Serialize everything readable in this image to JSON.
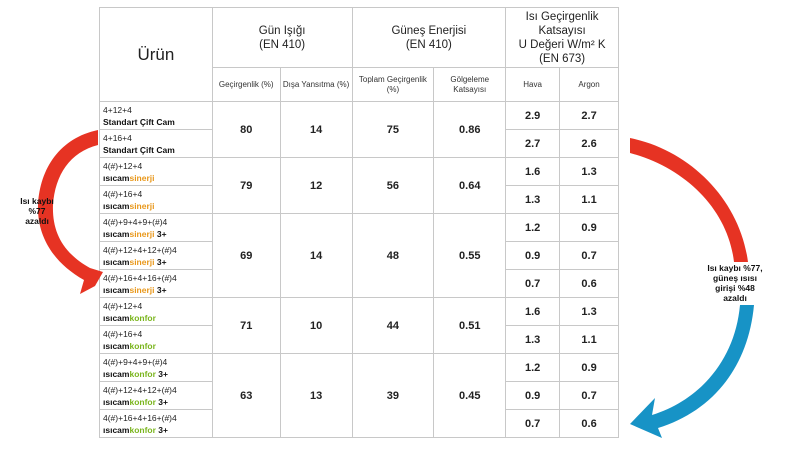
{
  "header": {
    "product": "Ürün",
    "daylight": {
      "title": "Gün Işığı",
      "standard": "(EN 410)",
      "col1": "Geçirgenlik (%)",
      "col2": "Dışa Yansıtma (%)"
    },
    "solar": {
      "title": "Güneş Enerjisi",
      "standard": "(EN 410)",
      "col1": "Toplam Geçirgenlik (%)",
      "col2": "Gölgeleme Katsayısı"
    },
    "heat": {
      "line1": "Isı Geçirgenlik",
      "line2": "Katsayısı",
      "line3": "U Değeri W/m² K",
      "line4": "(EN 673)",
      "col1": "Hava",
      "col2": "Argon"
    }
  },
  "groups": [
    {
      "light_trans": "80",
      "light_refl": "14",
      "solar_total": "75",
      "shading": "0.86",
      "rows": [
        {
          "config": "4+12+4",
          "brand": "Standart Çift Cam",
          "line": "",
          "suffix": "",
          "hava": "2.9",
          "argon": "2.7"
        },
        {
          "config": "4+16+4",
          "brand": "Standart Çift Cam",
          "line": "",
          "suffix": "",
          "hava": "2.7",
          "argon": "2.6"
        }
      ]
    },
    {
      "light_trans": "79",
      "light_refl": "12",
      "solar_total": "56",
      "shading": "0.64",
      "rows": [
        {
          "config": "4(#)+12+4",
          "brand": "ısıcam",
          "line": "sinerji",
          "suffix": "",
          "hava": "1.6",
          "argon": "1.3"
        },
        {
          "config": "4(#)+16+4",
          "brand": "ısıcam",
          "line": "sinerji",
          "suffix": "",
          "hava": "1.3",
          "argon": "1.1"
        }
      ]
    },
    {
      "light_trans": "69",
      "light_refl": "14",
      "solar_total": "48",
      "shading": "0.55",
      "rows": [
        {
          "config": "4(#)+9+4+9+(#)4",
          "brand": "ısıcam",
          "line": "sinerji",
          "suffix": " 3+",
          "hava": "1.2",
          "argon": "0.9"
        },
        {
          "config": "4(#)+12+4+12+(#)4",
          "brand": "ısıcam",
          "line": "sinerji",
          "suffix": " 3+",
          "hava": "0.9",
          "argon": "0.7"
        },
        {
          "config": "4(#)+16+4+16+(#)4",
          "brand": "ısıcam",
          "line": "sinerji",
          "suffix": " 3+",
          "hava": "0.7",
          "argon": "0.6"
        }
      ]
    },
    {
      "light_trans": "71",
      "light_refl": "10",
      "solar_total": "44",
      "shading": "0.51",
      "rows": [
        {
          "config": "4(#)+12+4",
          "brand": "ısıcam",
          "line": "konfor",
          "suffix": "",
          "hava": "1.6",
          "argon": "1.3"
        },
        {
          "config": "4(#)+16+4",
          "brand": "ısıcam",
          "line": "konfor",
          "suffix": "",
          "hava": "1.3",
          "argon": "1.1"
        }
      ]
    },
    {
      "light_trans": "63",
      "light_refl": "13",
      "solar_total": "39",
      "shading": "0.45",
      "rows": [
        {
          "config": "4(#)+9+4+9+(#)4",
          "brand": "ısıcam",
          "line": "konfor",
          "suffix": " 3+",
          "hava": "1.2",
          "argon": "0.9"
        },
        {
          "config": "4(#)+12+4+12+(#)4",
          "brand": "ısıcam",
          "line": "konfor",
          "suffix": " 3+",
          "hava": "0.9",
          "argon": "0.7"
        },
        {
          "config": "4(#)+16+4+16+(#)4",
          "brand": "ısıcam",
          "line": "konfor",
          "suffix": " 3+",
          "hava": "0.7",
          "argon": "0.6"
        }
      ]
    }
  ],
  "annotations": {
    "left": {
      "lines": [
        "Isı kaybı",
        "%77",
        "azaldı"
      ],
      "color": "#e63323"
    },
    "right": {
      "lines": [
        "Isı kaybı %77,",
        "güneş ısısı",
        "girişi %48",
        "azaldı"
      ],
      "arrow_color": "#e63323",
      "arrow2_color": "#1793c6"
    }
  }
}
